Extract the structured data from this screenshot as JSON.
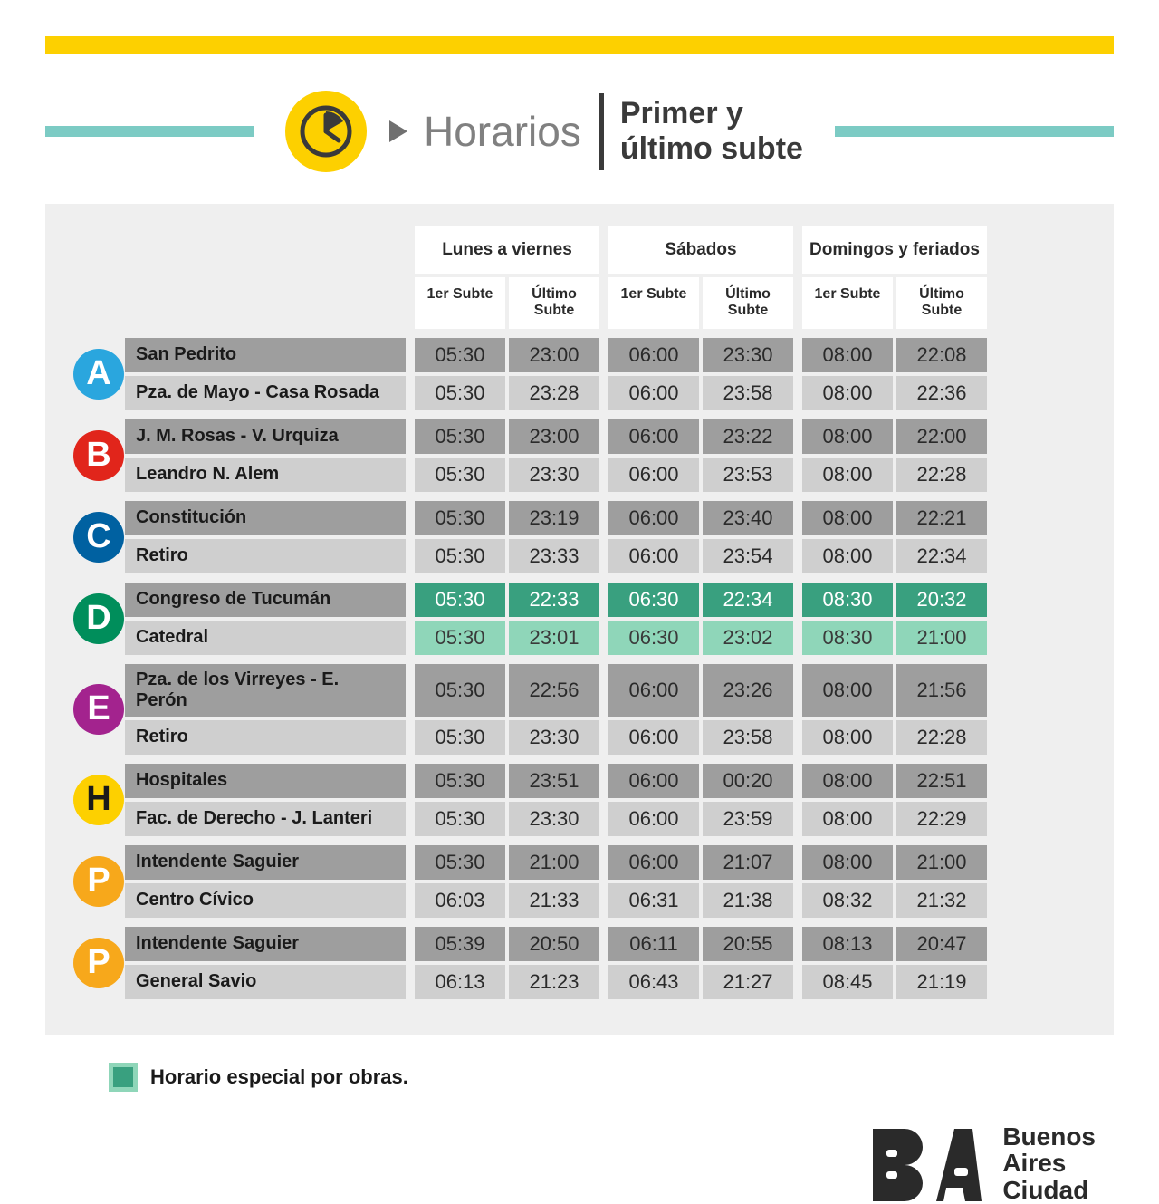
{
  "colors": {
    "yellow": "#fdd000",
    "teal": "#7ccbc4",
    "dark_cell": "#9e9e9e",
    "light_cell": "#cfcfcf",
    "special_dark": "#39a07f",
    "special_light": "#8fd6b9",
    "background_panel": "#efefef",
    "text_main": "#3a3a3a",
    "text_muted": "#808080"
  },
  "title": {
    "main": "Horarios",
    "sub_line1": "Primer y",
    "sub_line2": "último subte"
  },
  "headers": {
    "groups": [
      "Lunes a viernes",
      "Sábados",
      "Domingos y feriados"
    ],
    "sub_first": "1er Subte",
    "sub_last": "Último Subte"
  },
  "legend": "Horario especial por obras.",
  "footer": {
    "line1": "Buenos",
    "line2": "Aires",
    "line3": "Ciudad"
  },
  "lines": [
    {
      "id": "A",
      "badge_bg": "#2aa6de",
      "badge_fg": "#ffffff",
      "rows": [
        {
          "station": "San Pedrito",
          "shade": "dark",
          "special": false,
          "cells": [
            "05:30",
            "23:00",
            "06:00",
            "23:30",
            "08:00",
            "22:08"
          ]
        },
        {
          "station": "Pza. de Mayo - Casa Rosada",
          "shade": "light",
          "special": false,
          "cells": [
            "05:30",
            "23:28",
            "06:00",
            "23:58",
            "08:00",
            "22:36"
          ]
        }
      ]
    },
    {
      "id": "B",
      "badge_bg": "#e1251b",
      "badge_fg": "#ffffff",
      "rows": [
        {
          "station": "J. M. Rosas - V. Urquiza",
          "shade": "dark",
          "special": false,
          "cells": [
            "05:30",
            "23:00",
            "06:00",
            "23:22",
            "08:00",
            "22:00"
          ]
        },
        {
          "station": "Leandro N. Alem",
          "shade": "light",
          "special": false,
          "cells": [
            "05:30",
            "23:30",
            "06:00",
            "23:53",
            "08:00",
            "22:28"
          ]
        }
      ]
    },
    {
      "id": "C",
      "badge_bg": "#0061a1",
      "badge_fg": "#ffffff",
      "rows": [
        {
          "station": "Constitución",
          "shade": "dark",
          "special": false,
          "cells": [
            "05:30",
            "23:19",
            "06:00",
            "23:40",
            "08:00",
            "22:21"
          ]
        },
        {
          "station": "Retiro",
          "shade": "light",
          "special": false,
          "cells": [
            "05:30",
            "23:33",
            "06:00",
            "23:54",
            "08:00",
            "22:34"
          ]
        }
      ]
    },
    {
      "id": "D",
      "badge_bg": "#008e5b",
      "badge_fg": "#ffffff",
      "rows": [
        {
          "station": "Congreso de Tucumán",
          "shade": "dark",
          "special": true,
          "cells": [
            "05:30",
            "22:33",
            "06:30",
            "22:34",
            "08:30",
            "20:32"
          ]
        },
        {
          "station": "Catedral",
          "shade": "light",
          "special": true,
          "cells": [
            "05:30",
            "23:01",
            "06:30",
            "23:02",
            "08:30",
            "21:00"
          ]
        }
      ]
    },
    {
      "id": "E",
      "badge_bg": "#a3238e",
      "badge_fg": "#ffffff",
      "rows": [
        {
          "station": "Pza. de los Virreyes - E. Perón",
          "shade": "dark",
          "special": false,
          "cells": [
            "05:30",
            "22:56",
            "06:00",
            "23:26",
            "08:00",
            "21:56"
          ]
        },
        {
          "station": "Retiro",
          "shade": "light",
          "special": false,
          "cells": [
            "05:30",
            "23:30",
            "06:00",
            "23:58",
            "08:00",
            "22:28"
          ]
        }
      ]
    },
    {
      "id": "H",
      "badge_bg": "#fdd000",
      "badge_fg": "#1a1a1a",
      "rows": [
        {
          "station": "Hospitales",
          "shade": "dark",
          "special": false,
          "cells": [
            "05:30",
            "23:51",
            "06:00",
            "00:20",
            "08:00",
            "22:51"
          ]
        },
        {
          "station": "Fac. de Derecho - J. Lanteri",
          "shade": "light",
          "special": false,
          "cells": [
            "05:30",
            "23:30",
            "06:00",
            "23:59",
            "08:00",
            "22:29"
          ]
        }
      ]
    },
    {
      "id": "P",
      "badge_bg": "#f7a81b",
      "badge_fg": "#ffffff",
      "rows": [
        {
          "station": "Intendente Saguier",
          "shade": "dark",
          "special": false,
          "cells": [
            "05:30",
            "21:00",
            "06:00",
            "21:07",
            "08:00",
            "21:00"
          ]
        },
        {
          "station": "Centro Cívico",
          "shade": "light",
          "special": false,
          "cells": [
            "06:03",
            "21:33",
            "06:31",
            "21:38",
            "08:32",
            "21:32"
          ]
        }
      ]
    },
    {
      "id": "P",
      "badge_bg": "#f7a81b",
      "badge_fg": "#ffffff",
      "rows": [
        {
          "station": "Intendente Saguier",
          "shade": "dark",
          "special": false,
          "cells": [
            "05:39",
            "20:50",
            "06:11",
            "20:55",
            "08:13",
            "20:47"
          ]
        },
        {
          "station": "General Savio",
          "shade": "light",
          "special": false,
          "cells": [
            "06:13",
            "21:23",
            "06:43",
            "21:27",
            "08:45",
            "21:19"
          ]
        }
      ]
    }
  ]
}
